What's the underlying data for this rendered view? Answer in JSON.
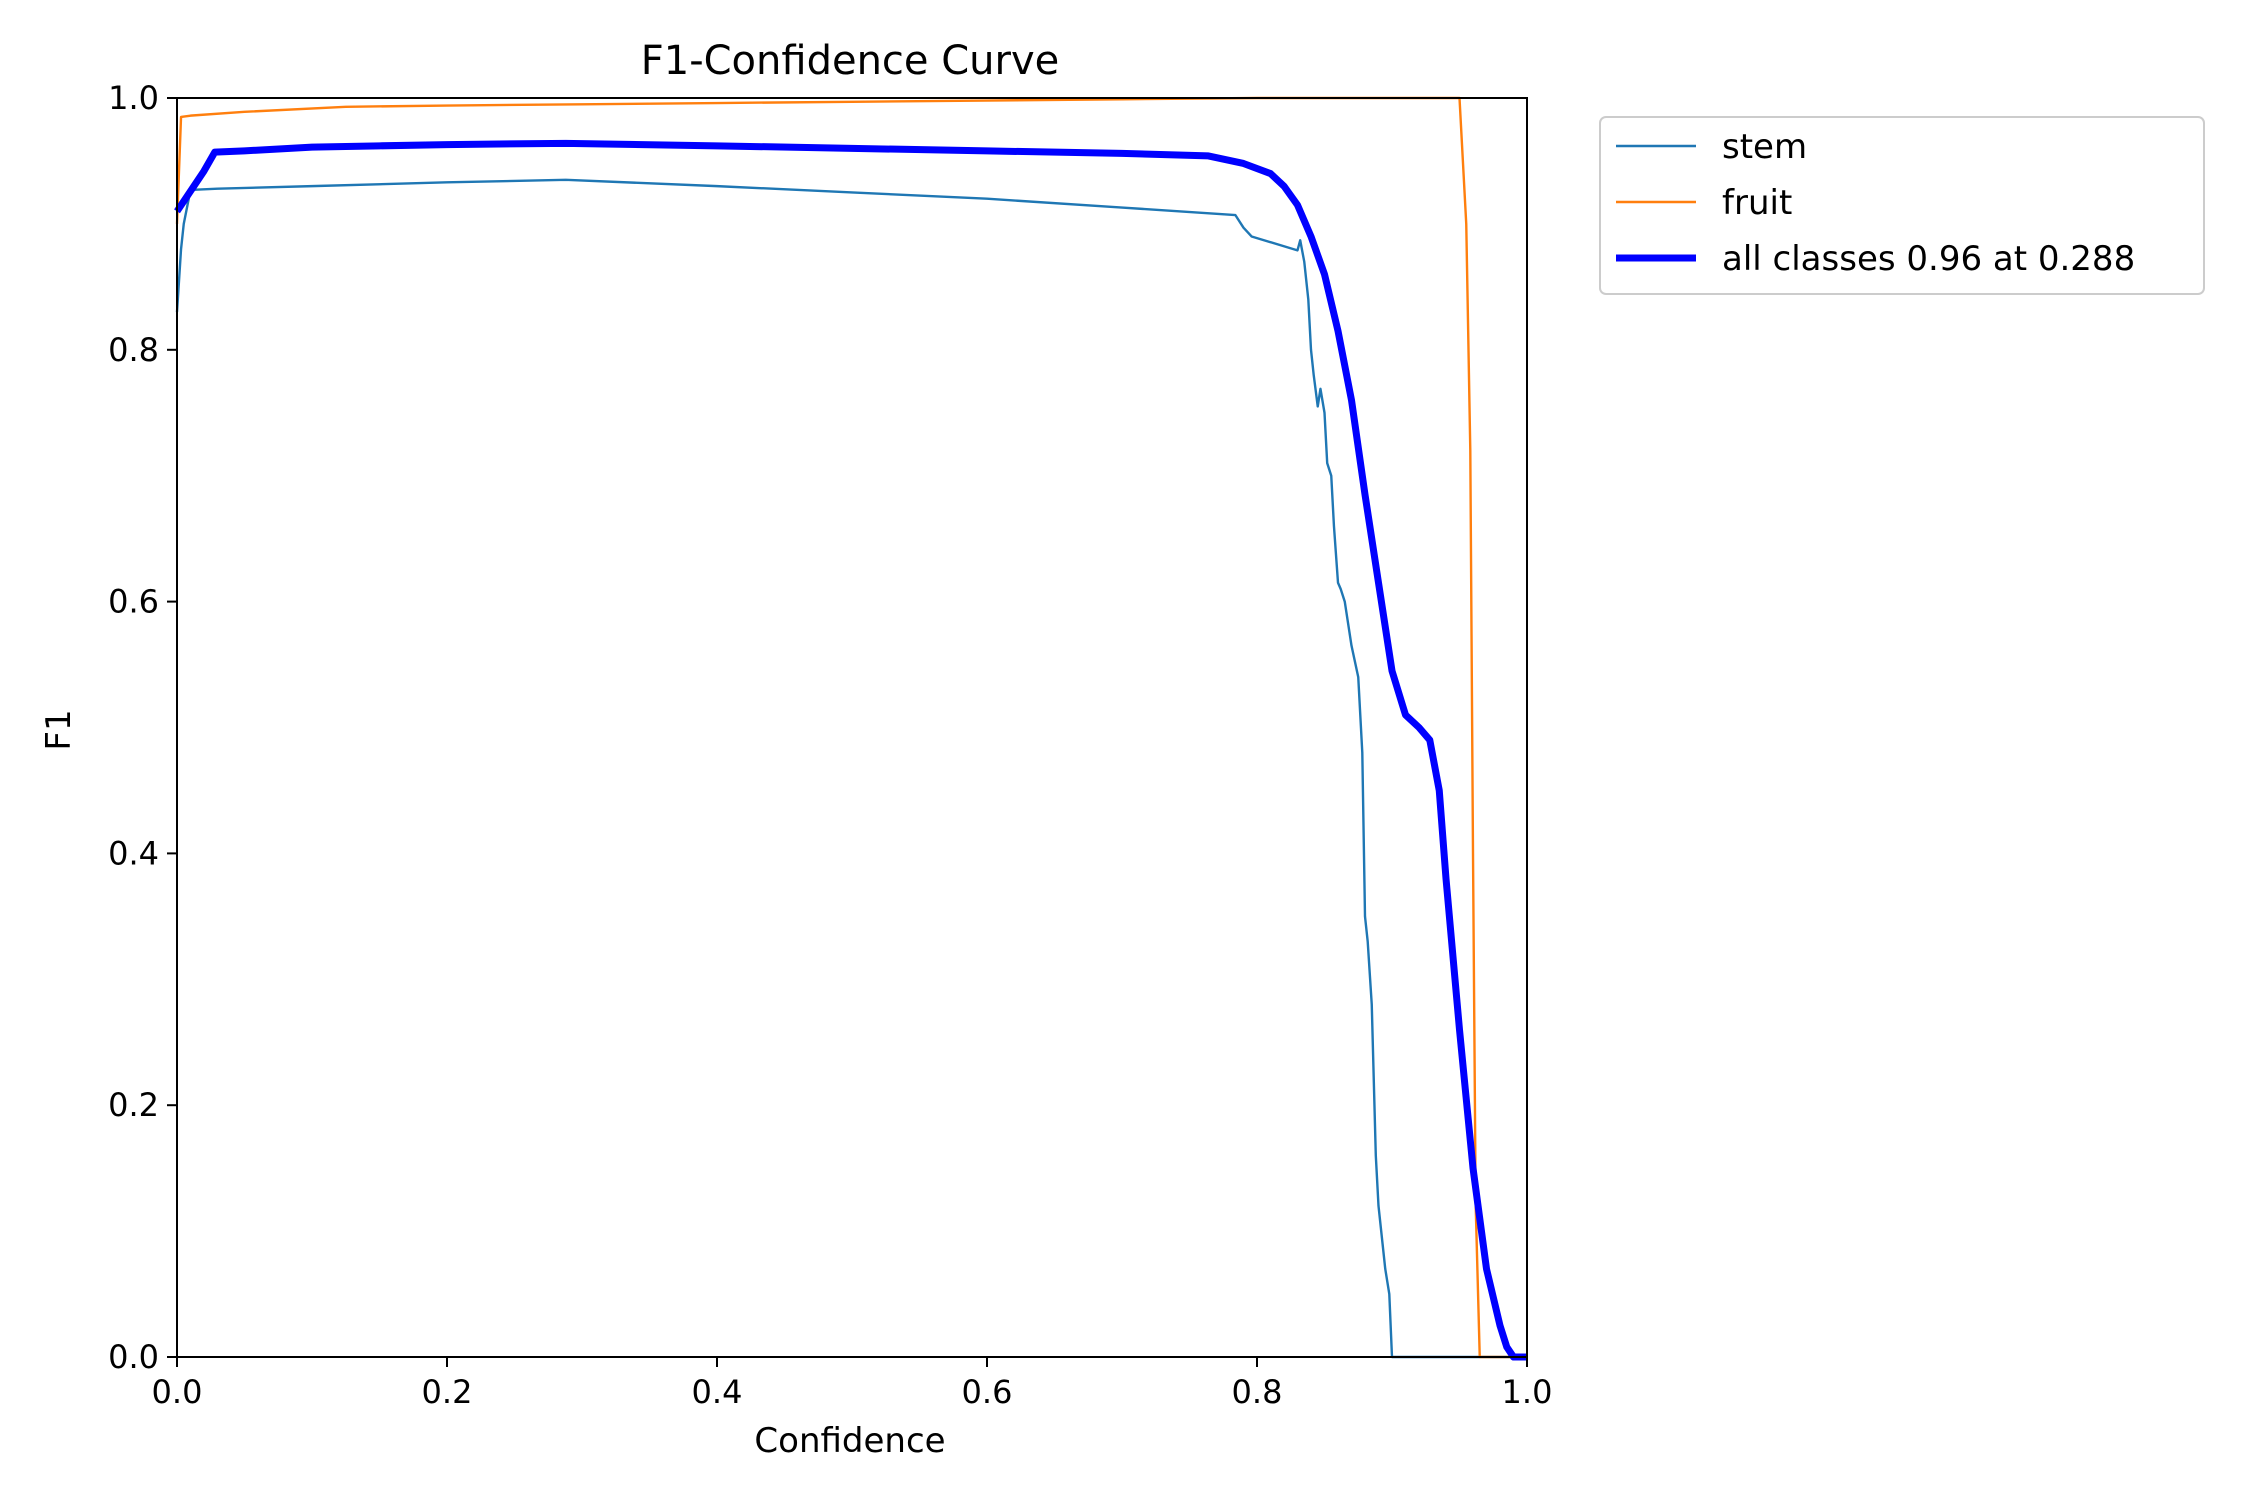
{
  "chart_data": {
    "type": "line",
    "title": "F1-Confidence Curve",
    "xlabel": "Confidence",
    "ylabel": "F1",
    "xlim": [
      0.0,
      1.0
    ],
    "ylim": [
      0.0,
      1.0
    ],
    "xticks": [
      "0.0",
      "0.2",
      "0.4",
      "0.6",
      "0.8",
      "1.0"
    ],
    "yticks": [
      "0.0",
      "0.2",
      "0.4",
      "0.6",
      "0.8",
      "1.0"
    ],
    "grid": false,
    "legend_position": "outside-top-right",
    "series": [
      {
        "name": "stem",
        "color": "#1f77b4",
        "line_width": "thin",
        "x": [
          0.0,
          0.003,
          0.005,
          0.01,
          0.03,
          0.1,
          0.2,
          0.288,
          0.4,
          0.5,
          0.6,
          0.7,
          0.784,
          0.79,
          0.796,
          0.83,
          0.832,
          0.835,
          0.838,
          0.84,
          0.842,
          0.845,
          0.847,
          0.85,
          0.852,
          0.855,
          0.857,
          0.86,
          0.862,
          0.865,
          0.87,
          0.875,
          0.878,
          0.88,
          0.882,
          0.885,
          0.888,
          0.89,
          0.893,
          0.895,
          0.898,
          0.9,
          0.902,
          0.905,
          0.91,
          0.92,
          0.93,
          0.94,
          0.95,
          0.96,
          0.97,
          0.98,
          0.99,
          1.0
        ],
        "y": [
          0.83,
          0.88,
          0.9,
          0.927,
          0.928,
          0.93,
          0.933,
          0.935,
          0.93,
          0.925,
          0.92,
          0.913,
          0.907,
          0.897,
          0.89,
          0.879,
          0.887,
          0.87,
          0.84,
          0.8,
          0.78,
          0.755,
          0.769,
          0.75,
          0.71,
          0.7,
          0.66,
          0.615,
          0.61,
          0.6,
          0.565,
          0.54,
          0.48,
          0.35,
          0.33,
          0.28,
          0.16,
          0.12,
          0.09,
          0.07,
          0.05,
          0.0,
          0.0,
          0.0,
          0.0,
          0.0,
          0.0,
          0.0,
          0.0,
          0.0,
          0.0,
          0.0,
          0.0,
          0.0
        ]
      },
      {
        "name": "fruit",
        "color": "#ff7f0e",
        "line_width": "thin",
        "x": [
          0.0,
          0.003,
          0.01,
          0.05,
          0.125,
          0.2,
          0.3,
          0.4,
          0.5,
          0.6,
          0.7,
          0.8,
          0.9,
          0.95,
          0.955,
          0.958,
          0.96,
          0.962,
          0.965,
          0.97,
          0.98,
          0.99,
          1.0
        ],
        "y": [
          0.9,
          0.985,
          0.986,
          0.989,
          0.993,
          0.994,
          0.995,
          0.996,
          0.997,
          0.998,
          0.999,
          1.0,
          1.0,
          1.0,
          0.9,
          0.72,
          0.4,
          0.12,
          0.0,
          0.0,
          0.0,
          0.0,
          0.0
        ]
      },
      {
        "name": "all classes 0.96 at 0.288",
        "color": "#0000ff",
        "line_width": "thick",
        "x": [
          0.0,
          0.01,
          0.02,
          0.028,
          0.05,
          0.1,
          0.15,
          0.2,
          0.288,
          0.4,
          0.5,
          0.6,
          0.7,
          0.764,
          0.79,
          0.81,
          0.82,
          0.83,
          0.84,
          0.85,
          0.86,
          0.87,
          0.88,
          0.89,
          0.9,
          0.91,
          0.92,
          0.928,
          0.935,
          0.94,
          0.95,
          0.96,
          0.97,
          0.98,
          0.985,
          0.99,
          0.995,
          1.0
        ],
        "y": [
          0.91,
          0.926,
          0.942,
          0.957,
          0.958,
          0.961,
          0.962,
          0.963,
          0.964,
          0.962,
          0.96,
          0.958,
          0.956,
          0.954,
          0.948,
          0.94,
          0.93,
          0.915,
          0.89,
          0.86,
          0.815,
          0.76,
          0.685,
          0.615,
          0.545,
          0.51,
          0.5,
          0.49,
          0.45,
          0.38,
          0.26,
          0.15,
          0.07,
          0.025,
          0.008,
          0.0,
          0.0,
          0.0
        ]
      }
    ]
  }
}
